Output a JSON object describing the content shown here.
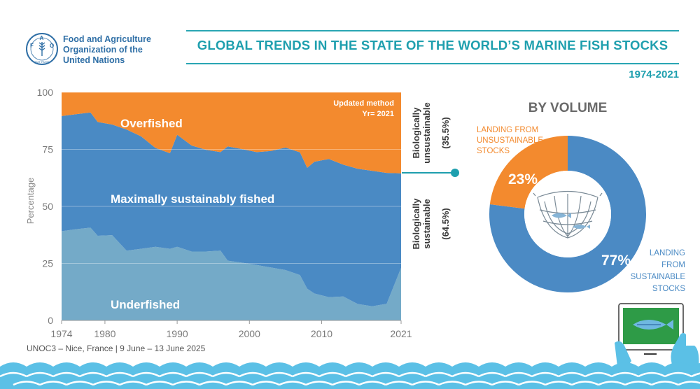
{
  "header": {
    "org_line1": "Food and Agriculture",
    "org_line2": "Organization of the",
    "org_line3": "United Nations",
    "logo_text": "FAO",
    "logo_motto": "FIAT PANIS",
    "title": "GLOBAL TRENDS IN THE STATE OF THE WORLD’S MARINE FISH STOCKS",
    "years": "1974-2021"
  },
  "footer": {
    "text": "UNOC3 – Nice, France | 9 June – 13 June 2025"
  },
  "colors": {
    "overfished": "#f38a2e",
    "max_sustainable": "#4a8ac4",
    "underfished": "#74aac8",
    "teal": "#1e9fae",
    "donut_sustainable": "#4b8ac4",
    "donut_unsustainable": "#f38a2e"
  },
  "chart_data": [
    {
      "type": "area",
      "title": "",
      "xlabel": "",
      "ylabel": "Percentage",
      "ylim": [
        0,
        100
      ],
      "xlim": [
        1974,
        2021
      ],
      "xticks": [
        1974,
        1980,
        1990,
        2000,
        2010,
        2021
      ],
      "yticks": [
        0,
        25,
        50,
        75,
        100
      ],
      "stacked": true,
      "x": [
        1974,
        1976,
        1978,
        1979,
        1981,
        1983,
        1985,
        1987,
        1989,
        1990,
        1992,
        1994,
        1996,
        1997,
        1999,
        2001,
        2003,
        2005,
        2007,
        2008,
        2009,
        2011,
        2013,
        2015,
        2017,
        2019,
        2021
      ],
      "series": [
        {
          "name": "Underfished",
          "values": [
            39.1,
            40,
            40.7,
            37.1,
            37.4,
            30.6,
            31.4,
            32.3,
            31.4,
            32.3,
            30.2,
            30.2,
            30.6,
            26.2,
            25.3,
            24.3,
            23.2,
            22.1,
            19.9,
            13.9,
            11.8,
            10.2,
            10.5,
            7.2,
            6.2,
            7.3,
            23.1
          ]
        },
        {
          "name": "Maximally sustainably fished",
          "values": [
            50.5,
            50.4,
            50.5,
            49.9,
            48.5,
            53.1,
            49.3,
            43.3,
            41.9,
            49.1,
            46.5,
            44.6,
            43.2,
            50.1,
            49.8,
            49.5,
            51.1,
            53.7,
            53.8,
            53,
            57.8,
            60.6,
            57.8,
            59.3,
            59.4,
            57.4,
            41.4
          ]
        },
        {
          "name": "Overfished",
          "values": [
            10.4,
            9.6,
            8.8,
            13,
            14.1,
            16.3,
            19.3,
            24.4,
            26.7,
            18.6,
            23.3,
            25.2,
            26.2,
            23.7,
            24.9,
            26.2,
            25.7,
            24.2,
            26.3,
            33.1,
            30.4,
            29.2,
            31.7,
            33.5,
            34.4,
            35.3,
            35.5
          ]
        }
      ],
      "area_labels": {
        "overfished": "Overfished",
        "max_sustainable": "Maximally sustainably fished",
        "underfished": "Underfished"
      },
      "annotation": {
        "line1": "Updated method",
        "line2": "Yr= 2021"
      },
      "side_labels": {
        "unsustainable_line1": "Biologically",
        "unsustainable_line2": "unsustainable",
        "unsustainable_pct": "(35.5%)",
        "sustainable_line1": "Biologically",
        "sustainable_line2": "sustainable",
        "sustainable_pct": "(64.5%)"
      }
    },
    {
      "type": "pie",
      "title": "BY VOLUME",
      "donut": true,
      "slices": [
        {
          "label": "LANDING FROM SUSTAINABLE STOCKS",
          "value": 77,
          "value_label": "77%",
          "label_lines": [
            "LANDING",
            "FROM",
            "SUSTAINABLE",
            "STOCKS"
          ]
        },
        {
          "label": "LANDING FROM UNSUSTAINABLE STOCKS",
          "value": 23,
          "value_label": "23%",
          "label_lines": [
            "LANDING FROM",
            "UNSUSTAINABLE",
            "STOCKS"
          ]
        }
      ]
    }
  ]
}
